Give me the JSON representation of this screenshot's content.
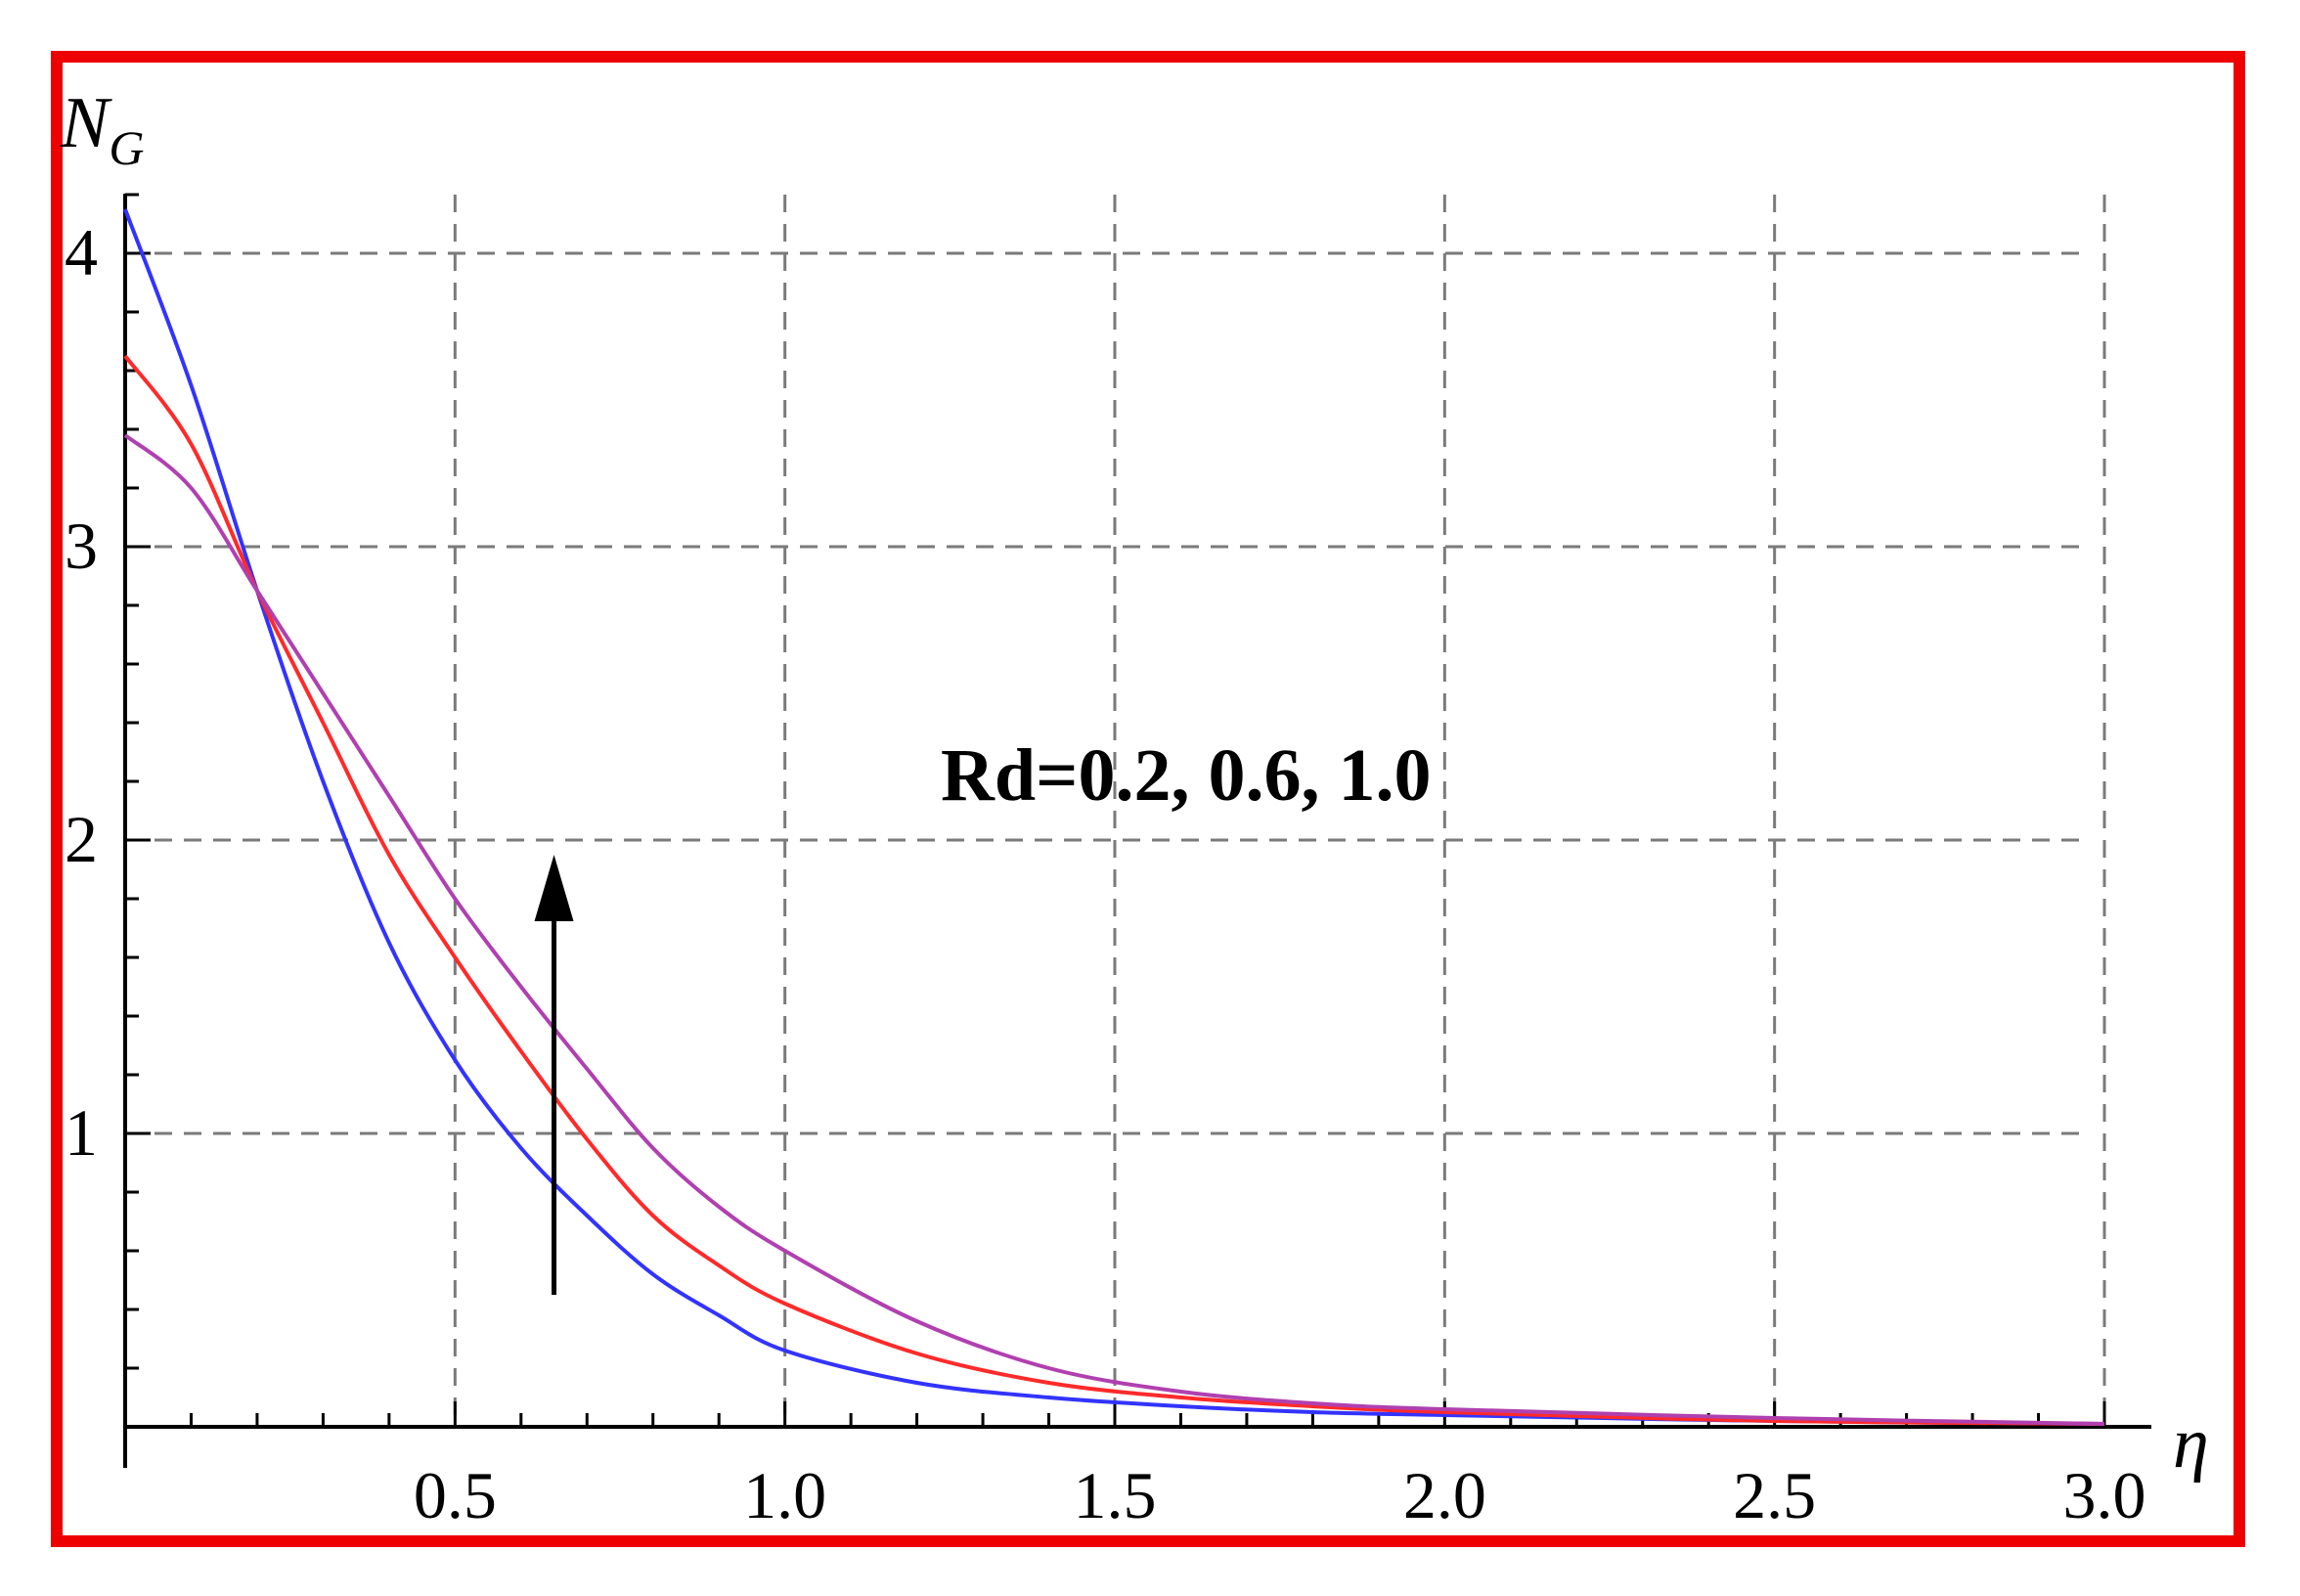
{
  "chart_data": {
    "type": "line",
    "ylabel_main": "N",
    "ylabel_sub": "G",
    "xlabel": "η",
    "xlim": [
      0,
      3.0
    ],
    "ylim": [
      0,
      4.2
    ],
    "x_ticks": [
      "0.5",
      "1.0",
      "1.5",
      "2.0",
      "2.5",
      "3.0"
    ],
    "x_tick_values": [
      0.5,
      1.0,
      1.5,
      2.0,
      2.5,
      3.0
    ],
    "y_ticks": [
      "1",
      "2",
      "3",
      "4"
    ],
    "y_tick_values": [
      1,
      2,
      3,
      4
    ],
    "grid": true,
    "annotation": "Rd=0.2, 0.6, 1.0",
    "arrow": {
      "x": 0.65,
      "y_from": 0.45,
      "y_to": 1.95,
      "direction": "up"
    },
    "colors": [
      "#3333ff",
      "#ff2a2a",
      "#b040b0"
    ],
    "series": [
      {
        "x": [
          0,
          0.1,
          0.2,
          0.3,
          0.4,
          0.5,
          0.6,
          0.7,
          0.8,
          0.9,
          1.0,
          1.2,
          1.4,
          1.6,
          1.8,
          2.0,
          2.5,
          3.0
        ],
        "values": [
          4.15,
          3.55,
          2.85,
          2.2,
          1.65,
          1.25,
          0.95,
          0.72,
          0.52,
          0.38,
          0.26,
          0.15,
          0.1,
          0.07,
          0.05,
          0.04,
          0.02,
          0.01
        ]
      },
      {
        "x": [
          0,
          0.1,
          0.2,
          0.3,
          0.4,
          0.5,
          0.6,
          0.7,
          0.8,
          0.9,
          1.0,
          1.2,
          1.4,
          1.6,
          1.8,
          2.0,
          2.5,
          3.0
        ],
        "values": [
          3.65,
          3.35,
          2.85,
          2.4,
          1.95,
          1.6,
          1.28,
          0.98,
          0.72,
          0.55,
          0.42,
          0.25,
          0.15,
          0.1,
          0.07,
          0.05,
          0.02,
          0.01
        ]
      },
      {
        "x": [
          0,
          0.1,
          0.2,
          0.3,
          0.4,
          0.5,
          0.6,
          0.7,
          0.8,
          0.9,
          1.0,
          1.2,
          1.4,
          1.6,
          1.8,
          2.0,
          2.5,
          3.0
        ],
        "values": [
          3.38,
          3.2,
          2.85,
          2.5,
          2.15,
          1.8,
          1.5,
          1.22,
          0.95,
          0.75,
          0.6,
          0.36,
          0.2,
          0.12,
          0.08,
          0.06,
          0.03,
          0.01
        ]
      }
    ]
  }
}
